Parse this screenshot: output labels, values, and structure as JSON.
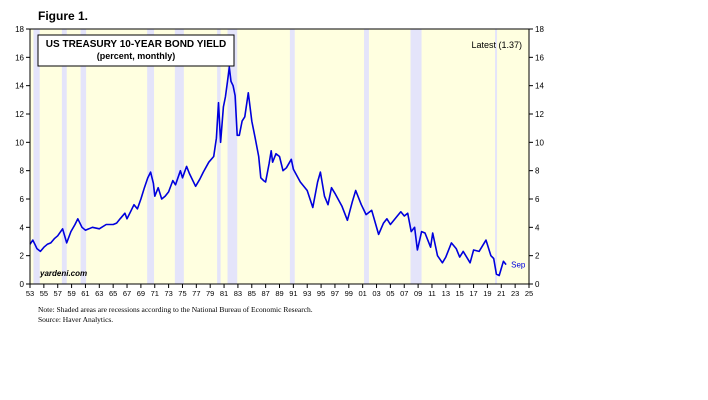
{
  "figure_label": "Figure 1.",
  "notes": {
    "line1": "Note: Shaded areas are recessions according to the National Bureau of Economic Research.",
    "line2": "Source: Haver Analytics."
  },
  "chart_data": {
    "type": "line",
    "title": "US TREASURY 10-YEAR BOND YIELD",
    "subtitle": "(percent, monthly)",
    "annotation_latest": "Latest (1.37)",
    "end_label": "Sep",
    "watermark": "yardeni.com",
    "xlim": [
      1953,
      2025
    ],
    "ylim": [
      0,
      18
    ],
    "y_ticks": [
      0,
      2,
      4,
      6,
      8,
      10,
      12,
      14,
      16,
      18
    ],
    "x_ticks": [
      {
        "year": 1953,
        "label": "53"
      },
      {
        "year": 1955,
        "label": "55"
      },
      {
        "year": 1957,
        "label": "57"
      },
      {
        "year": 1959,
        "label": "59"
      },
      {
        "year": 1961,
        "label": "61"
      },
      {
        "year": 1963,
        "label": "63"
      },
      {
        "year": 1965,
        "label": "65"
      },
      {
        "year": 1967,
        "label": "67"
      },
      {
        "year": 1969,
        "label": "69"
      },
      {
        "year": 1971,
        "label": "71"
      },
      {
        "year": 1973,
        "label": "73"
      },
      {
        "year": 1975,
        "label": "75"
      },
      {
        "year": 1977,
        "label": "77"
      },
      {
        "year": 1979,
        "label": "79"
      },
      {
        "year": 1981,
        "label": "81"
      },
      {
        "year": 1983,
        "label": "83"
      },
      {
        "year": 1985,
        "label": "85"
      },
      {
        "year": 1987,
        "label": "87"
      },
      {
        "year": 1989,
        "label": "89"
      },
      {
        "year": 1991,
        "label": "91"
      },
      {
        "year": 1993,
        "label": "93"
      },
      {
        "year": 1995,
        "label": "95"
      },
      {
        "year": 1997,
        "label": "97"
      },
      {
        "year": 1999,
        "label": "99"
      },
      {
        "year": 2001,
        "label": "01"
      },
      {
        "year": 2003,
        "label": "03"
      },
      {
        "year": 2005,
        "label": "05"
      },
      {
        "year": 2007,
        "label": "07"
      },
      {
        "year": 2009,
        "label": "09"
      },
      {
        "year": 2011,
        "label": "11"
      },
      {
        "year": 2013,
        "label": "13"
      },
      {
        "year": 2015,
        "label": "15"
      },
      {
        "year": 2017,
        "label": "17"
      },
      {
        "year": 2019,
        "label": "19"
      },
      {
        "year": 2021,
        "label": "21"
      },
      {
        "year": 2023,
        "label": "23"
      },
      {
        "year": 2025,
        "label": "25"
      }
    ],
    "recessions": [
      [
        1953.5,
        1954.4
      ],
      [
        1957.6,
        1958.3
      ],
      [
        1960.3,
        1961.1
      ],
      [
        1969.9,
        1970.9
      ],
      [
        1973.9,
        1975.2
      ],
      [
        1980.0,
        1980.5
      ],
      [
        1981.5,
        1982.9
      ],
      [
        1990.5,
        1991.2
      ],
      [
        2001.2,
        2001.9
      ],
      [
        2007.9,
        2009.5
      ],
      [
        2020.1,
        2020.3
      ]
    ],
    "colors": {
      "plot_background": "#FFFFE0",
      "recession_shading": "#E4E4FA",
      "series_line": "#0000DD"
    },
    "series": [
      {
        "values": [
          [
            1953.0,
            2.8
          ],
          [
            1953.4,
            3.1
          ],
          [
            1953.7,
            2.8
          ],
          [
            1954.0,
            2.5
          ],
          [
            1954.5,
            2.3
          ],
          [
            1955.0,
            2.6
          ],
          [
            1955.5,
            2.8
          ],
          [
            1956.0,
            2.9
          ],
          [
            1956.5,
            3.2
          ],
          [
            1957.0,
            3.4
          ],
          [
            1957.7,
            3.9
          ],
          [
            1958.3,
            2.9
          ],
          [
            1958.9,
            3.7
          ],
          [
            1959.5,
            4.2
          ],
          [
            1959.9,
            4.6
          ],
          [
            1960.5,
            4.0
          ],
          [
            1961.0,
            3.8
          ],
          [
            1961.5,
            3.9
          ],
          [
            1962.0,
            4.0
          ],
          [
            1963.0,
            3.9
          ],
          [
            1964.0,
            4.2
          ],
          [
            1965.0,
            4.2
          ],
          [
            1965.5,
            4.3
          ],
          [
            1966.0,
            4.6
          ],
          [
            1966.7,
            5.0
          ],
          [
            1967.0,
            4.6
          ],
          [
            1967.5,
            5.1
          ],
          [
            1968.0,
            5.6
          ],
          [
            1968.5,
            5.3
          ],
          [
            1969.0,
            6.0
          ],
          [
            1969.5,
            6.8
          ],
          [
            1970.0,
            7.5
          ],
          [
            1970.4,
            7.9
          ],
          [
            1970.8,
            7.1
          ],
          [
            1971.0,
            6.2
          ],
          [
            1971.5,
            6.8
          ],
          [
            1972.0,
            6.0
          ],
          [
            1972.5,
            6.2
          ],
          [
            1973.0,
            6.5
          ],
          [
            1973.6,
            7.3
          ],
          [
            1974.0,
            7.0
          ],
          [
            1974.7,
            8.0
          ],
          [
            1975.0,
            7.5
          ],
          [
            1975.6,
            8.3
          ],
          [
            1976.0,
            7.8
          ],
          [
            1976.9,
            6.9
          ],
          [
            1977.5,
            7.4
          ],
          [
            1978.0,
            7.9
          ],
          [
            1978.8,
            8.6
          ],
          [
            1979.5,
            9.0
          ],
          [
            1979.9,
            10.3
          ],
          [
            1980.2,
            12.8
          ],
          [
            1980.5,
            10.0
          ],
          [
            1980.9,
            12.5
          ],
          [
            1981.2,
            13.2
          ],
          [
            1981.5,
            14.3
          ],
          [
            1981.75,
            15.3
          ],
          [
            1982.0,
            14.3
          ],
          [
            1982.3,
            14.0
          ],
          [
            1982.6,
            13.3
          ],
          [
            1982.9,
            10.5
          ],
          [
            1983.2,
            10.5
          ],
          [
            1983.6,
            11.5
          ],
          [
            1984.0,
            11.8
          ],
          [
            1984.5,
            13.5
          ],
          [
            1985.0,
            11.5
          ],
          [
            1985.5,
            10.3
          ],
          [
            1986.0,
            9.0
          ],
          [
            1986.3,
            7.5
          ],
          [
            1986.7,
            7.3
          ],
          [
            1987.0,
            7.2
          ],
          [
            1987.5,
            8.5
          ],
          [
            1987.8,
            9.4
          ],
          [
            1988.0,
            8.6
          ],
          [
            1988.5,
            9.2
          ],
          [
            1989.0,
            9.0
          ],
          [
            1989.5,
            8.0
          ],
          [
            1990.0,
            8.2
          ],
          [
            1990.7,
            8.8
          ],
          [
            1991.0,
            8.1
          ],
          [
            1992.0,
            7.2
          ],
          [
            1993.0,
            6.6
          ],
          [
            1993.8,
            5.4
          ],
          [
            1994.5,
            7.2
          ],
          [
            1994.9,
            7.9
          ],
          [
            1995.5,
            6.2
          ],
          [
            1996.0,
            5.6
          ],
          [
            1996.5,
            6.8
          ],
          [
            1997.0,
            6.4
          ],
          [
            1998.0,
            5.5
          ],
          [
            1998.8,
            4.5
          ],
          [
            1999.5,
            5.8
          ],
          [
            2000.0,
            6.6
          ],
          [
            2000.8,
            5.6
          ],
          [
            2001.5,
            4.9
          ],
          [
            2002.3,
            5.2
          ],
          [
            2003.3,
            3.5
          ],
          [
            2004.0,
            4.3
          ],
          [
            2004.5,
            4.6
          ],
          [
            2005.0,
            4.2
          ],
          [
            2006.0,
            4.8
          ],
          [
            2006.5,
            5.1
          ],
          [
            2007.0,
            4.8
          ],
          [
            2007.5,
            5.0
          ],
          [
            2008.0,
            3.7
          ],
          [
            2008.5,
            4.0
          ],
          [
            2008.9,
            2.4
          ],
          [
            2009.5,
            3.7
          ],
          [
            2010.0,
            3.6
          ],
          [
            2010.8,
            2.6
          ],
          [
            2011.1,
            3.6
          ],
          [
            2011.8,
            2.0
          ],
          [
            2012.5,
            1.5
          ],
          [
            2013.0,
            1.9
          ],
          [
            2013.8,
            2.9
          ],
          [
            2014.5,
            2.5
          ],
          [
            2015.0,
            1.9
          ],
          [
            2015.5,
            2.3
          ],
          [
            2016.5,
            1.5
          ],
          [
            2017.0,
            2.4
          ],
          [
            2017.8,
            2.3
          ],
          [
            2018.8,
            3.1
          ],
          [
            2019.5,
            2.0
          ],
          [
            2019.9,
            1.8
          ],
          [
            2020.3,
            0.7
          ],
          [
            2020.7,
            0.6
          ],
          [
            2021.0,
            1.1
          ],
          [
            2021.3,
            1.6
          ],
          [
            2021.7,
            1.37
          ]
        ]
      }
    ]
  }
}
